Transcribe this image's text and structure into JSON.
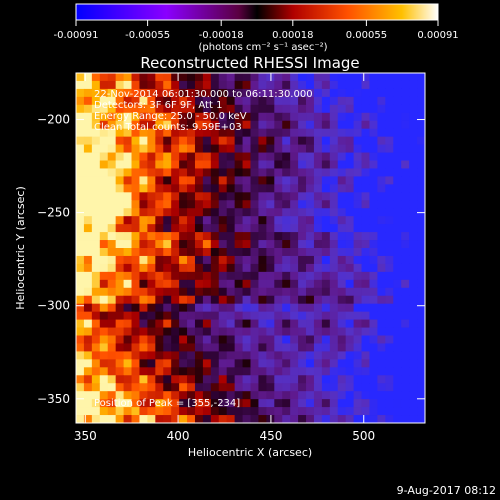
{
  "chart_data": {
    "type": "heatmap",
    "title": "Reconstructed RHESSI Image",
    "xlabel": "Heliocentric X (arcsec)",
    "ylabel": "Heliocentric Y (arcsec)",
    "xlim": [
      345,
      533
    ],
    "ylim": [
      -363,
      -175
    ],
    "xticks": [
      350,
      400,
      450,
      500
    ],
    "yticks": [
      -200,
      -250,
      -300,
      -350
    ],
    "xtick_labels": [
      "350",
      "400",
      "450",
      "500"
    ],
    "ytick_labels": [
      "−200",
      "−250",
      "−300",
      "−350"
    ],
    "annotations": [
      "22-Nov-2014 06:01:30.000 to 06:11:30.000",
      "Detectors: 3F 6F 9F, Att 1",
      "Energy Range: 25.0 - 50.0 keV",
      "Clean    Total counts: 9.59E+03"
    ],
    "peak_label": "Position of Peak = [355,-234]",
    "peak": [
      355,
      -234
    ],
    "colorbar": {
      "range": [
        -0.00091,
        0.00091
      ],
      "ticks": [
        -0.00091,
        -0.00055,
        -0.00018,
        0.00018,
        0.00055,
        0.00091
      ],
      "tick_labels": [
        "-0.00091",
        "-0.00055",
        "-0.00018",
        "0.00018",
        "0.00055",
        "0.00091"
      ],
      "unit_label": "(photons cm⁻² s⁻¹ asec⁻²)",
      "colors": [
        "#0000ff",
        "#5a00c8",
        "#8c00ff",
        "#6e0066",
        "#000000",
        "#c00000",
        "#ff5000",
        "#ffb000",
        "#ffffff"
      ]
    },
    "grid": false
  },
  "footer": {
    "date": "9-Aug-2017 08:12"
  }
}
